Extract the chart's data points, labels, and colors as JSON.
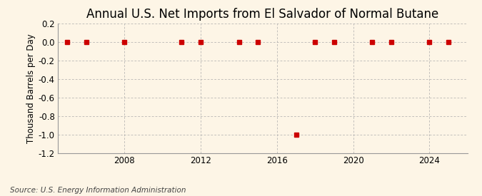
{
  "title": "Annual U.S. Net Imports from El Salvador of Normal Butane",
  "ylabel": "Thousand Barrels per Day",
  "source": "Source: U.S. Energy Information Administration",
  "background_color": "#fdf5e6",
  "years": [
    2005,
    2006,
    2008,
    2011,
    2012,
    2014,
    2015,
    2017,
    2018,
    2019,
    2021,
    2022,
    2024,
    2025
  ],
  "values": [
    0.0,
    0.0,
    0.0,
    0.0,
    0.0,
    0.0,
    0.0,
    -1.0,
    0.0,
    0.0,
    0.0,
    0.0,
    0.0,
    0.0
  ],
  "marker_color": "#cc0000",
  "marker_size": 4,
  "ylim": [
    -1.2,
    0.2
  ],
  "yticks": [
    0.2,
    0.0,
    -0.2,
    -0.4,
    -0.6,
    -0.8,
    -1.0,
    -1.2
  ],
  "xlim": [
    2004.5,
    2026
  ],
  "xticks": [
    2008,
    2012,
    2016,
    2020,
    2024
  ],
  "grid_color": "#aaaaaa",
  "title_fontsize": 12,
  "axis_fontsize": 8.5,
  "tick_fontsize": 8.5,
  "source_fontsize": 7.5
}
